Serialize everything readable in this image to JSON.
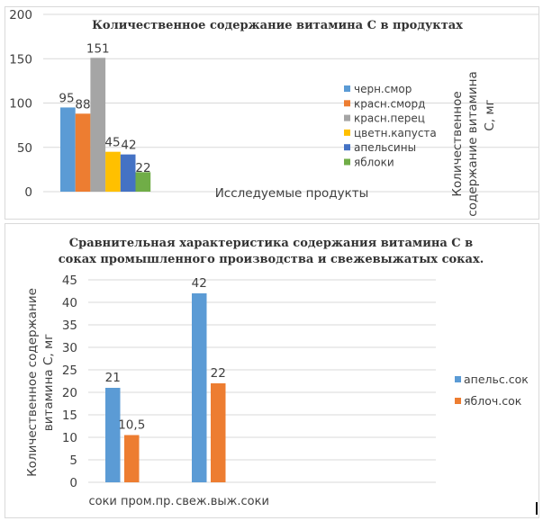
{
  "chart_data": [
    {
      "type": "bar",
      "title": "Количественное содержание витамина С в  продуктах",
      "xlabel": "Исследуемые продукты",
      "ylabel": "Количественное содержание витамина С, мг",
      "ylabel_lines": [
        "Количественное",
        "содержание витамина",
        "С, мг"
      ],
      "ylim": [
        0,
        200
      ],
      "yticks": [
        0,
        50,
        100,
        150,
        200
      ],
      "grid": true,
      "legend_position": "right",
      "series": [
        {
          "name": "черн.смор",
          "values": [
            95
          ],
          "color": "#5b9bd5"
        },
        {
          "name": "красн.сморд",
          "values": [
            88
          ],
          "color": "#ed7d31"
        },
        {
          "name": "красн.перец",
          "values": [
            151
          ],
          "color": "#a5a5a5"
        },
        {
          "name": "цветн.капуста",
          "values": [
            45
          ],
          "color": "#ffc000"
        },
        {
          "name": "апельсины",
          "values": [
            42
          ],
          "color": "#4472c4"
        },
        {
          "name": "яблоки",
          "values": [
            22
          ],
          "color": "#70ad47"
        }
      ],
      "data_labels": [
        "95",
        "88",
        "151",
        "45",
        "42",
        "22"
      ]
    },
    {
      "type": "bar",
      "title": "Сравнительная характеристика содержания витамина С в соках промышленного производства и свежевыжатых соках.",
      "title_lines": [
        "Сравнительная характеристика содержания витамина С в",
        "соках промышленного производства и свежевыжатых соках."
      ],
      "xlabel": "",
      "ylabel": "Количественное содержание витамина С, мг",
      "ylabel_lines": [
        "Количественное содержание",
        "витамина С, мг"
      ],
      "categories": [
        "соки пром.пр.",
        "свеж.выж.соки"
      ],
      "ylim": [
        0,
        45
      ],
      "yticks": [
        0,
        5,
        10,
        15,
        20,
        25,
        30,
        35,
        40,
        45
      ],
      "grid": true,
      "legend_position": "right",
      "series": [
        {
          "name": "апельс.сок",
          "values": [
            21,
            42
          ],
          "labels": [
            "21",
            "42"
          ],
          "color": "#5b9bd5"
        },
        {
          "name": "яблоч.сок",
          "values": [
            10.5,
            22
          ],
          "labels": [
            "10,5",
            "22"
          ],
          "color": "#ed7d31"
        }
      ]
    }
  ]
}
